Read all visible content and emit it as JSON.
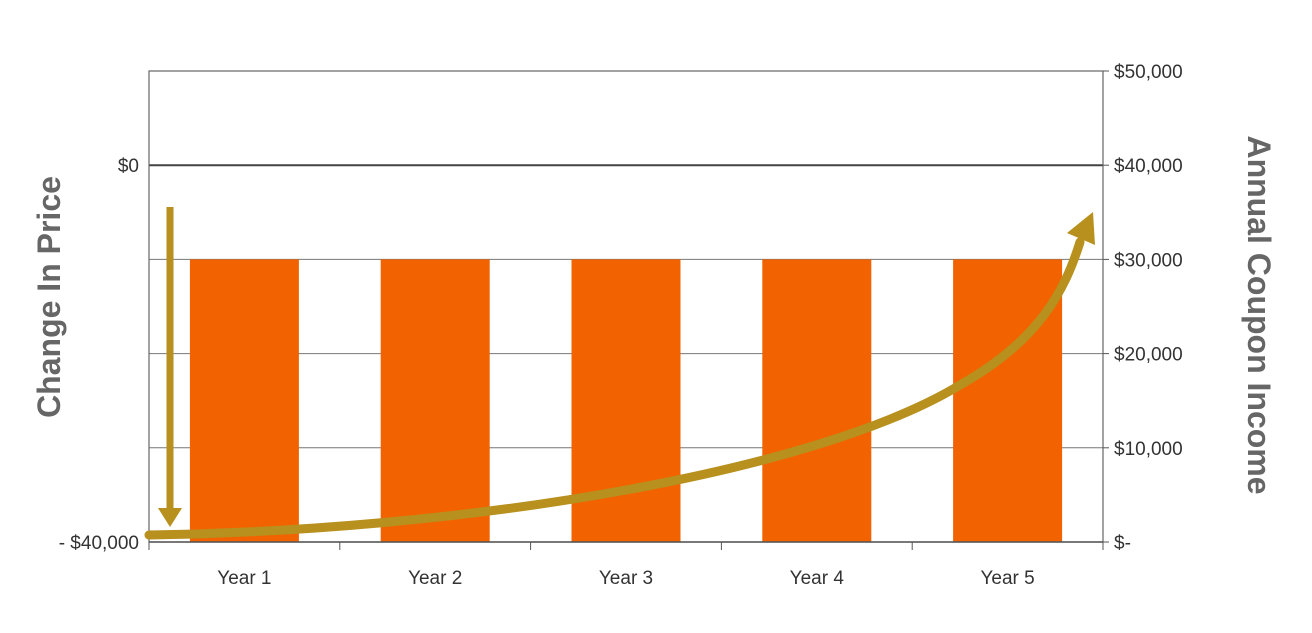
{
  "chart_data": {
    "type": "bar",
    "categories": [
      "Year 1",
      "Year 2",
      "Year 3",
      "Year 4",
      "Year 5"
    ],
    "series": [
      {
        "values": [
          -10000,
          -10000,
          -10000,
          -10000,
          -10000
        ]
      }
    ],
    "left_axis": {
      "title": "Change In Price",
      "ylim": [
        -40000,
        10000
      ],
      "labeled_ticks": [
        {
          "value": 0,
          "label": "$0"
        },
        {
          "value": -40000,
          "label": "- $40,000"
        }
      ],
      "gridlines": [
        10000,
        0,
        -10000,
        -20000,
        -30000,
        -40000
      ]
    },
    "right_axis": {
      "title": "Annual Coupon Income",
      "ylim": [
        0,
        50000
      ],
      "ticks": [
        {
          "value": 50000,
          "label": "$50,000"
        },
        {
          "value": 40000,
          "label": "$40,000"
        },
        {
          "value": 30000,
          "label": "$30,000"
        },
        {
          "value": 20000,
          "label": "$20,000"
        },
        {
          "value": 10000,
          "label": "$10,000"
        },
        {
          "value": 0,
          "label": "$-"
        }
      ]
    },
    "annotations": [
      {
        "kind": "arrow",
        "direction": "down",
        "meaning": "price drop to -$40,000"
      },
      {
        "kind": "curved-arrow",
        "direction": "up-right",
        "meaning": "coupon income rising"
      }
    ],
    "grid": true,
    "legend": "none",
    "colors": {
      "bar": "#F26300",
      "arrow": "#B8901D",
      "gridline": "#777777",
      "zero_line": "#444444",
      "tick_text": "#333333",
      "axis_title": "#666666"
    }
  }
}
